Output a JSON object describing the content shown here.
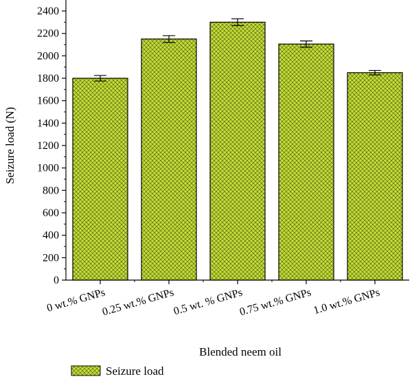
{
  "chart_data": {
    "type": "bar",
    "categories": [
      "0 wt.% GNPs",
      "0.25 wt.% GNPs",
      "0.5 wt. % GNPs",
      "0.75 wt.% GNPs",
      "1.0 wt.% GNPs"
    ],
    "series": [
      {
        "name": "Seizure load",
        "values": [
          1800,
          2150,
          2300,
          2105,
          1850
        ],
        "errors": [
          25,
          30,
          30,
          28,
          20
        ]
      }
    ],
    "title": "",
    "xlabel": "Blended neem oil",
    "ylabel": "Seizure load (N)",
    "ylim": [
      0,
      2400
    ],
    "yticks": [
      0,
      200,
      400,
      600,
      800,
      1000,
      1200,
      1400,
      1600,
      1800,
      2000,
      2200,
      2400
    ],
    "grid": false,
    "legend": "bottom-left",
    "colors": {
      "bar_fill": "#c6dc3a",
      "hatch": "#5a6b10",
      "bar_stroke": "#000000",
      "axis": "#000000"
    }
  }
}
